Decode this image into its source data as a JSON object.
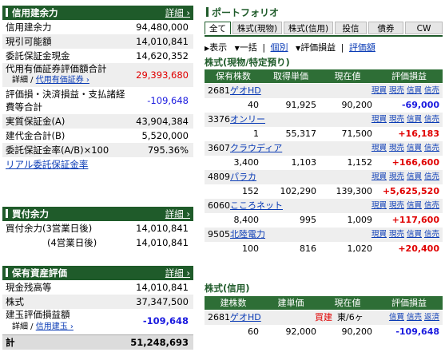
{
  "credit_margin": {
    "title": "信用建余力",
    "detail": "詳細 ›",
    "rows": [
      {
        "label": "信用建余力",
        "value": "94,480,000"
      },
      {
        "label": "現引可能額",
        "value": "14,010,841"
      },
      {
        "label": "委託保証金現金",
        "value": "14,620,352"
      },
      {
        "label": "代用有価証券評価額合計",
        "value": "29,393,680"
      },
      {
        "label_line1": "評価損・決済損益・支払諸経",
        "label_line2": "費等合計",
        "value": "-109,648"
      },
      {
        "label": "実質保証金(A)",
        "value": "43,904,384"
      },
      {
        "label": "建代金合計(B)",
        "value": "5,520,000"
      },
      {
        "label": "委託保証金率(A/B)×100",
        "value": "795.36%"
      }
    ],
    "sub_link_prefix": "詳細 / ",
    "sub_link": "代用有価証券 ›",
    "real_link": "リアル委託保証金率"
  },
  "buying_power": {
    "title": "買付余力",
    "detail": "詳細 ›",
    "rows": [
      {
        "label": "買付余力(3営業日後)",
        "value": "14,010,841"
      },
      {
        "label": "(4営業日後)",
        "value": "14,010,841"
      }
    ]
  },
  "assets": {
    "title": "保有資産評価",
    "detail": "詳細 ›",
    "rows": [
      {
        "label": "現金残高等",
        "value": "14,010,841"
      },
      {
        "label": "株式",
        "value": "37,347,500"
      },
      {
        "label": "建玉評価損益額",
        "value": "-109,648"
      }
    ],
    "sub_prefix": "詳細 / ",
    "sub_link": "信用建玉 ›",
    "total_label": "計",
    "total_value": "51,248,693"
  },
  "portfolio": {
    "title": "ポートフォリオ",
    "tabs": [
      "全て",
      "株式(現物)",
      "株式(信用)",
      "投信",
      "債券",
      "CW"
    ],
    "view": {
      "display": "表示",
      "all_label": "一括",
      "separator": "|",
      "individual": "個別",
      "eval_pl": "評価損益",
      "eval_amount": "評価額"
    },
    "cash_section": "株式(現物/特定預り)",
    "cash_headers": [
      "保有株数",
      "取得単価",
      "現在値",
      "評価損益"
    ],
    "actions": [
      "現買",
      "現売",
      "信買",
      "信売"
    ],
    "cash_rows": [
      {
        "code": "2681",
        "name": "ゲオHD",
        "qty": "40",
        "cost": "91,925",
        "price": "90,200",
        "pl": "-69,000",
        "pl_color": "#1a1adf"
      },
      {
        "code": "3376",
        "name": "オンリー",
        "qty": "1",
        "cost": "55,317",
        "price": "71,500",
        "pl": "+16,183",
        "pl_color": "#e00000"
      },
      {
        "code": "3607",
        "name": "クラウディア",
        "qty": "3,400",
        "cost": "1,103",
        "price": "1,152",
        "pl": "+166,600",
        "pl_color": "#e00000"
      },
      {
        "code": "4809",
        "name": "パラカ",
        "qty": "152",
        "cost": "102,290",
        "price": "139,300",
        "pl": "+5,625,520",
        "pl_color": "#e00000"
      },
      {
        "code": "6060",
        "name": "こころネット",
        "qty": "8,400",
        "cost": "995",
        "price": "1,009",
        "pl": "+117,600",
        "pl_color": "#e00000"
      },
      {
        "code": "9505",
        "name": "北陸電力",
        "qty": "100",
        "cost": "816",
        "price": "1,020",
        "pl": "+20,400",
        "pl_color": "#e00000"
      }
    ],
    "margin_section": "株式(信用)",
    "margin_headers": [
      "建株数",
      "建単価",
      "現在値",
      "評価損益"
    ],
    "margin_actions": [
      "信買",
      "信売",
      "返済"
    ],
    "margin_rows": [
      {
        "code": "2681",
        "name": "ゲオHD",
        "qty": "60",
        "cost": "92,000",
        "price": "90,200",
        "side": "買建",
        "market": "東/6ヶ",
        "pl": "-109,648",
        "pl_color": "#1a1adf"
      }
    ]
  }
}
